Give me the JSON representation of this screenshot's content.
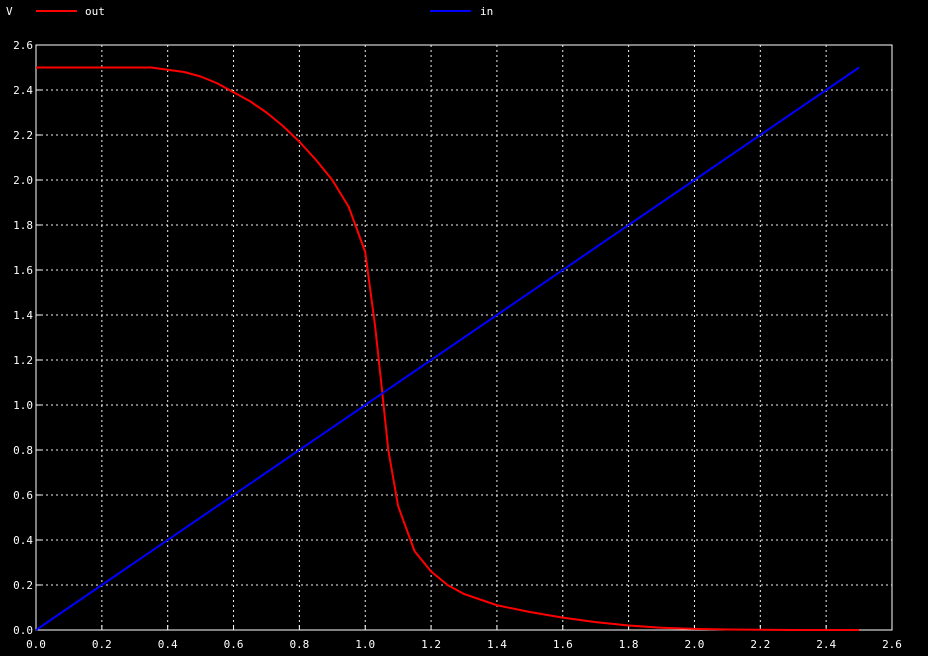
{
  "colors": {
    "background": "#000000",
    "foreground": "#ffffff",
    "out": "#ff0000",
    "in": "#0000ff"
  },
  "chart_data": {
    "type": "line",
    "unit_label": "V",
    "grid": true,
    "legend_position": "top",
    "xlim": [
      0,
      2.6
    ],
    "ylim": [
      0,
      2.6
    ],
    "x_ticks": [
      "0.0",
      "0.2",
      "0.4",
      "0.6",
      "0.8",
      "1.0",
      "1.2",
      "1.4",
      "1.6",
      "1.8",
      "2.0",
      "2.2",
      "2.4",
      "2.6"
    ],
    "y_ticks": [
      "0.0",
      "0.2",
      "0.4",
      "0.6",
      "0.8",
      "1.0",
      "1.2",
      "1.4",
      "1.6",
      "1.8",
      "2.0",
      "2.2",
      "2.4",
      "2.6"
    ],
    "series": [
      {
        "name": "out",
        "color": "#ff0000",
        "x": [
          0.0,
          0.1,
          0.2,
          0.3,
          0.35,
          0.4,
          0.45,
          0.5,
          0.55,
          0.6,
          0.65,
          0.7,
          0.75,
          0.8,
          0.85,
          0.9,
          0.95,
          1.0,
          1.03,
          1.05,
          1.07,
          1.1,
          1.15,
          1.2,
          1.25,
          1.3,
          1.4,
          1.5,
          1.6,
          1.7,
          1.8,
          1.9,
          2.0,
          2.1,
          2.2,
          2.3,
          2.4,
          2.5
        ],
        "y": [
          2.5,
          2.5,
          2.5,
          2.5,
          2.5,
          2.49,
          2.48,
          2.46,
          2.43,
          2.39,
          2.35,
          2.3,
          2.24,
          2.17,
          2.09,
          2.0,
          1.88,
          1.68,
          1.35,
          1.08,
          0.8,
          0.55,
          0.35,
          0.26,
          0.2,
          0.16,
          0.11,
          0.08,
          0.055,
          0.035,
          0.02,
          0.01,
          0.005,
          0.002,
          0.001,
          0.0,
          0.0,
          0.0
        ]
      },
      {
        "name": "in",
        "color": "#0000ff",
        "x": [
          0.0,
          2.5
        ],
        "y": [
          0.0,
          2.5
        ]
      }
    ]
  }
}
